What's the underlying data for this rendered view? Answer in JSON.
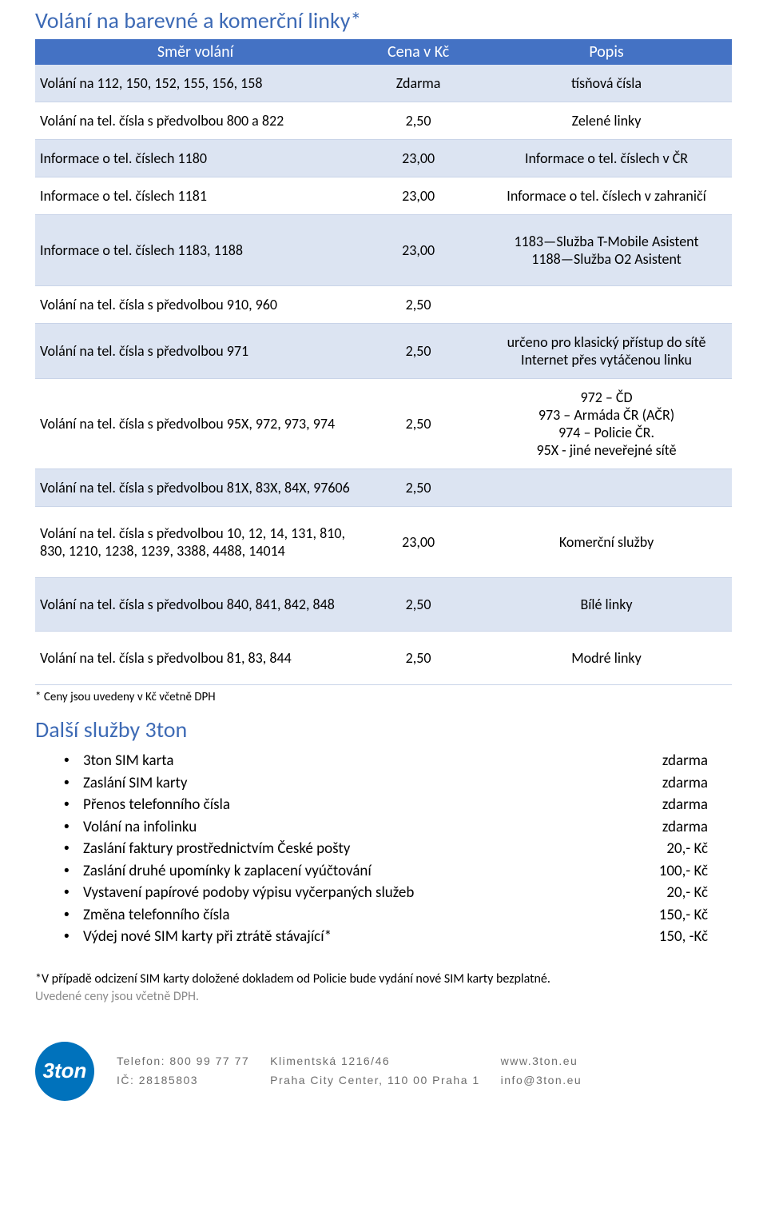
{
  "colors": {
    "heading": "#3d6ab5",
    "header_bg": "#4472c4",
    "header_text": "#ffffff",
    "row_alt_bg": "#dce4f2",
    "row_border": "#c9d4e8",
    "footer_text": "#6d6d6d",
    "logo_bg": "#0072bc",
    "note_grey": "#8a8a8a"
  },
  "section1": {
    "title": "Volání na barevné a komerční linky*",
    "columns": [
      "Směr volání",
      "Cena v Kč",
      "Popis"
    ],
    "rows": [
      {
        "dir": "Volání na 112, 150, 152, 155, 156, 158",
        "price": "Zdarma",
        "desc": "tísňová čísla",
        "alt": true,
        "tall": false
      },
      {
        "dir": "Volání na tel. čísla s předvolbou 800 a 822",
        "price": "2,50",
        "desc": "Zelené linky",
        "alt": false,
        "tall": false
      },
      {
        "dir": "Informace o tel. číslech 1180",
        "price": "23,00",
        "desc": "Informace o tel. číslech v ČR",
        "alt": true,
        "tall": false
      },
      {
        "dir": "Informace o tel. číslech 1181",
        "price": "23,00",
        "desc": "Informace o tel. číslech v zahraničí",
        "alt": false,
        "tall": false
      },
      {
        "dir": "Informace o tel. číslech 1183, 1188",
        "price": "23,00",
        "desc": "1183—Služba T-Mobile Asistent\n1188—Služba O2 Asistent",
        "alt": true,
        "tall": true
      },
      {
        "dir": "Volání na tel. čísla s předvolbou 910, 960",
        "price": "2,50",
        "desc": "",
        "alt": false,
        "tall": false
      },
      {
        "dir": "Volání na tel. čísla s předvolbou 971",
        "price": "2,50",
        "desc": "určeno pro klasický přístup do sítě Internet přes vytáčenou linku",
        "alt": true,
        "tall": false
      },
      {
        "dir": "Volání na tel. čísla s předvolbou 95X, 972, 973, 974",
        "price": "2,50",
        "desc": "972 – ČD\n973 – Armáda ČR (AČR)\n974 – Policie ČR.\n95X - jiné neveřejné sítě",
        "alt": false,
        "tall": false
      },
      {
        "dir": "Volání na tel. čísla s předvolbou 81X, 83X, 84X, 97606",
        "price": "2,50",
        "desc": "",
        "alt": true,
        "tall": false
      },
      {
        "dir": "Volání na tel. čísla s předvolbou 10, 12, 14, 131, 810, 830, 1210, 1238, 1239, 3388, 4488, 14014",
        "price": "23,00",
        "desc": "Komerční služby",
        "alt": false,
        "tall": true
      },
      {
        "dir": "Volání na tel. čísla s předvolbou 840, 841, 842, 848",
        "price": "2,50",
        "desc": "Bílé linky",
        "alt": true,
        "tall": true
      },
      {
        "dir": "Volání na tel. čísla s předvolbou 81, 83, 844",
        "price": "2,50",
        "desc": "Modré linky",
        "alt": false,
        "tall": true
      }
    ],
    "footnote": "* Ceny jsou uvedeny v Kč včetně DPH"
  },
  "section2": {
    "title": "Další služby 3ton",
    "items": [
      {
        "label": "3ton SIM karta",
        "price": "zdarma"
      },
      {
        "label": "Zaslání SIM karty",
        "price": "zdarma"
      },
      {
        "label": "Přenos telefonního čísla",
        "price": "zdarma"
      },
      {
        "label": "Volání na infolinku",
        "price": "zdarma"
      },
      {
        "label": "Zaslání faktury prostřednictvím České pošty",
        "price": "20,- Kč"
      },
      {
        "label": "Zaslání druhé upomínky k zaplacení vyúčtování",
        "price": "100,- Kč"
      },
      {
        "label": "Vystavení papírové podoby výpisu vyčerpaných služeb",
        "price": "20,- Kč"
      },
      {
        "label": "Změna telefonního čísla",
        "price": "150,- Kč"
      },
      {
        "label": "Výdej nové SIM karty při ztrátě stávající*",
        "price": "150, -Kč"
      }
    ],
    "note_line1": "*V případě odcizení SIM karty doložené dokladem od Policie bude vydání nové SIM karty bezplatné.",
    "note_line2": "Uvedené ceny jsou včetně DPH."
  },
  "footer": {
    "logo_text": "3ton",
    "col1_l1": "Telefon: 800 99 77 77",
    "col1_l2": "IČ: 28185803",
    "col2_l1": "Klimentská 1216/46",
    "col2_l2": "Praha City Center, 110 00 Praha 1",
    "col3_l1": "www.3ton.eu",
    "col3_l2": "info@3ton.eu"
  }
}
